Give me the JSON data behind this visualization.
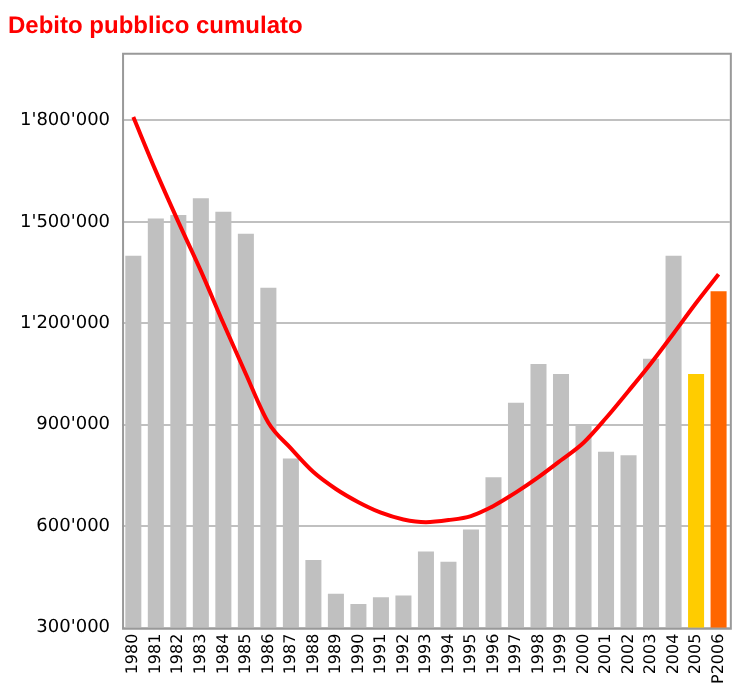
{
  "chart_data": {
    "type": "bar",
    "title": "Debito pubblico cumulato",
    "categories": [
      "1980",
      "1981",
      "1982",
      "1983",
      "1984",
      "1985",
      "1986",
      "1987",
      "1988",
      "1989",
      "1990",
      "1991",
      "1992",
      "1993",
      "1994",
      "1995",
      "1996",
      "1997",
      "1998",
      "1999",
      "2000",
      "2001",
      "2002",
      "2003",
      "2004",
      "2005",
      "P2006"
    ],
    "series": [
      {
        "values": [
          1400000,
          1510000,
          1520000,
          1570000,
          1530000,
          1465000,
          1305000,
          800000,
          500000,
          400000,
          370000,
          390000,
          395000,
          525000,
          495000,
          590000,
          745000,
          965000,
          1080000,
          1050000,
          900000,
          820000,
          810000,
          1095000,
          1400000,
          1050000,
          1295000
        ],
        "colors": [
          "#c0c0c0",
          "#c0c0c0",
          "#c0c0c0",
          "#c0c0c0",
          "#c0c0c0",
          "#c0c0c0",
          "#c0c0c0",
          "#c0c0c0",
          "#c0c0c0",
          "#c0c0c0",
          "#c0c0c0",
          "#c0c0c0",
          "#c0c0c0",
          "#c0c0c0",
          "#c0c0c0",
          "#c0c0c0",
          "#c0c0c0",
          "#c0c0c0",
          "#c0c0c0",
          "#c0c0c0",
          "#c0c0c0",
          "#c0c0c0",
          "#c0c0c0",
          "#c0c0c0",
          "#c0c0c0",
          "#ffcc00",
          "#ff6600"
        ]
      },
      {
        "type": "line",
        "color": "#ff0000",
        "values": [
          1810000,
          1650000,
          1500000,
          1355000,
          1200000,
          1050000,
          906000,
          830000,
          760000,
          710000,
          671000,
          640000,
          620000,
          612000,
          618000,
          630000,
          660000,
          700000,
          745000,
          795000,
          847000,
          920000,
          1000000,
          1082000,
          1170000,
          1260000,
          1345000
        ]
      }
    ],
    "ylim": [
      300000,
      2000000
    ],
    "yticks": [
      {
        "value": 300000,
        "label": "300'000"
      },
      {
        "value": 600000,
        "label": "600'000"
      },
      {
        "value": 900000,
        "label": "900'000"
      },
      {
        "value": 1200000,
        "label": "1'200'000"
      },
      {
        "value": 1500000,
        "label": "1'500'000"
      },
      {
        "value": 1800000,
        "label": "1'800'000"
      }
    ],
    "grid": "y",
    "legend": false,
    "marker": "none",
    "line_style": "solid"
  }
}
